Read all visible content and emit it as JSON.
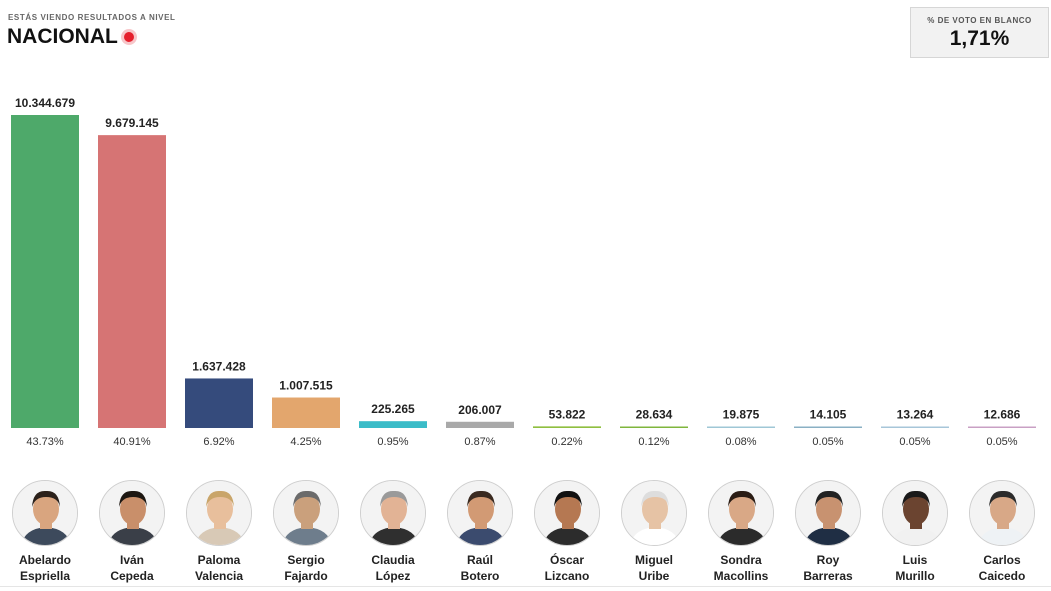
{
  "header": {
    "subtitle": "ESTÁS VIENDO RESULTADOS A NIVEL",
    "title": "NACIONAL"
  },
  "blank_vote": {
    "label": "% DE VOTO EN BLANCO",
    "value": "1,71%"
  },
  "chart_data": {
    "type": "bar",
    "categories": [
      "Abelardo Espriella",
      "Iván Cepeda",
      "Paloma Valencia",
      "Sergio Fajardo",
      "Claudia López",
      "Raúl Botero",
      "Óscar Lizcano",
      "Miguel Uribe",
      "Sondra Macollins",
      "Roy Barreras",
      "Luis Murillo",
      "Carlos Caicedo"
    ],
    "values": [
      10344679,
      9679145,
      1637428,
      1007515,
      225265,
      206007,
      53822,
      28634,
      19875,
      14105,
      13264,
      12686
    ],
    "value_labels": [
      "10.344.679",
      "9.679.145",
      "1.637.428",
      "1.007.515",
      "225.265",
      "206.007",
      "53.822",
      "28.634",
      "19.875",
      "14.105",
      "13.264",
      "12.686"
    ],
    "percent_labels": [
      "43.73%",
      "40.91%",
      "6.92%",
      "4.25%",
      "0.95%",
      "0.87%",
      "0.22%",
      "0.12%",
      "0.08%",
      "0.05%",
      "0.05%",
      "0.05%"
    ],
    "colors": [
      "#4ea96a",
      "#d67474",
      "#354b7c",
      "#e3a66d",
      "#3bbcc8",
      "#a9a9a9",
      "#8fbf3f",
      "#7fb63c",
      "#9fc7d6",
      "#8ab0c4",
      "#a7c6d9",
      "#c9a0c4"
    ],
    "ylim": [
      0,
      10344679
    ],
    "grid": false,
    "legend": "none"
  },
  "candidates": [
    {
      "first": "Abelardo",
      "last": "Espriella",
      "icon": "candidate-photo-icon"
    },
    {
      "first": "Iván",
      "last": "Cepeda",
      "icon": "candidate-photo-icon"
    },
    {
      "first": "Paloma",
      "last": "Valencia",
      "icon": "candidate-photo-icon"
    },
    {
      "first": "Sergio",
      "last": "Fajardo",
      "icon": "candidate-photo-icon"
    },
    {
      "first": "Claudia",
      "last": "López",
      "icon": "candidate-photo-icon"
    },
    {
      "first": "Raúl",
      "last": "Botero",
      "icon": "candidate-photo-icon"
    },
    {
      "first": "Óscar",
      "last": "Lizcano",
      "icon": "candidate-photo-icon"
    },
    {
      "first": "Miguel",
      "last": "Uribe",
      "icon": "candidate-photo-icon"
    },
    {
      "first": "Sondra",
      "last": "Macollins",
      "icon": "candidate-photo-icon"
    },
    {
      "first": "Roy",
      "last": "Barreras",
      "icon": "candidate-photo-icon"
    },
    {
      "first": "Luis",
      "last": "Murillo",
      "icon": "candidate-photo-icon"
    },
    {
      "first": "Carlos",
      "last": "Caicedo",
      "icon": "candidate-photo-icon"
    }
  ]
}
